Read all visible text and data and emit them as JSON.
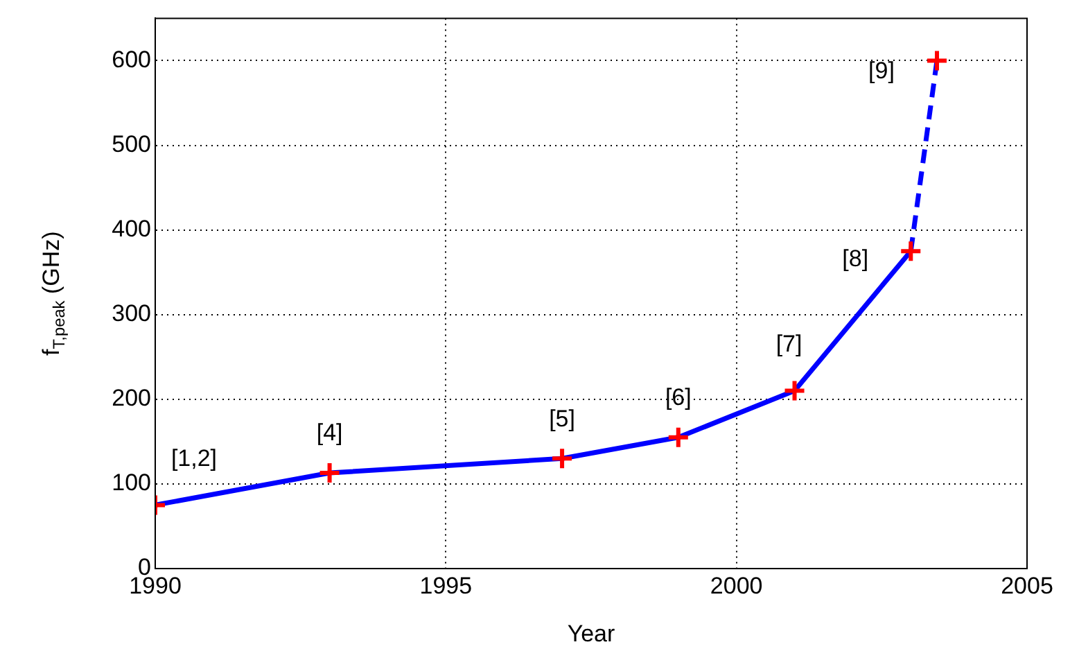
{
  "chart_data": {
    "type": "line",
    "xlabel": "Year",
    "ylabel": "f$_{T,peak}$ (GHz)",
    "xlim": [
      1990,
      2005
    ],
    "xticks": [
      1990,
      1995,
      2000,
      2005
    ],
    "ylim": [
      0,
      650
    ],
    "yticks": [
      0,
      100,
      200,
      300,
      400,
      500,
      600
    ],
    "grid": true,
    "series": [
      {
        "color": "#0000ff",
        "x": [
          1990,
          1993,
          1997,
          1999,
          2001,
          2003
        ],
        "values": [
          75,
          113,
          130,
          155,
          210,
          375
        ],
        "line_style": "solid",
        "marker": "none"
      },
      {
        "color": "#0000ff",
        "x": [
          2003,
          2003.45
        ],
        "values": [
          375,
          600
        ],
        "line_style": "dashed",
        "marker": "none"
      },
      {
        "type": "scatter",
        "color": "#ff0000",
        "x": [
          1990,
          1993,
          1997,
          1999,
          2001,
          2003,
          2003.45
        ],
        "values": [
          75,
          113,
          130,
          155,
          210,
          375,
          600
        ],
        "marker": "cross"
      }
    ],
    "annotations": [
      {
        "text": "[1,2]",
        "x": 1990,
        "y": 75
      },
      {
        "text": "[4]",
        "x": 1993,
        "y": 113
      },
      {
        "text": "[5]",
        "x": 1997,
        "y": 130
      },
      {
        "text": "[6]",
        "x": 1999,
        "y": 155
      },
      {
        "text": "[7]",
        "x": 2001,
        "y": 210
      },
      {
        "text": "[8]",
        "x": 2003,
        "y": 375
      },
      {
        "text": "[9]",
        "x": 2003.45,
        "y": 600
      }
    ]
  }
}
